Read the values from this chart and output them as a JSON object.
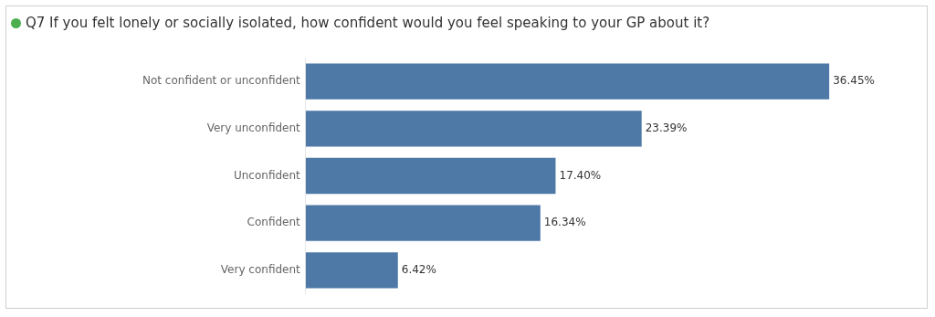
{
  "chart_data": {
    "type": "bar",
    "orientation": "horizontal",
    "title": "Q7 If you felt lonely or socially isolated, how confident would you feel speaking to your GP about it?",
    "categories": [
      "Not confident or unconfident",
      "Very unconfident",
      "Unconfident",
      "Confident",
      "Very confident"
    ],
    "values": [
      36.45,
      23.39,
      17.4,
      16.34,
      6.42
    ],
    "value_labels": [
      "36.45%",
      "23.39%",
      "17.40%",
      "16.34%",
      "6.42%"
    ],
    "color": "#4e79a7"
  }
}
